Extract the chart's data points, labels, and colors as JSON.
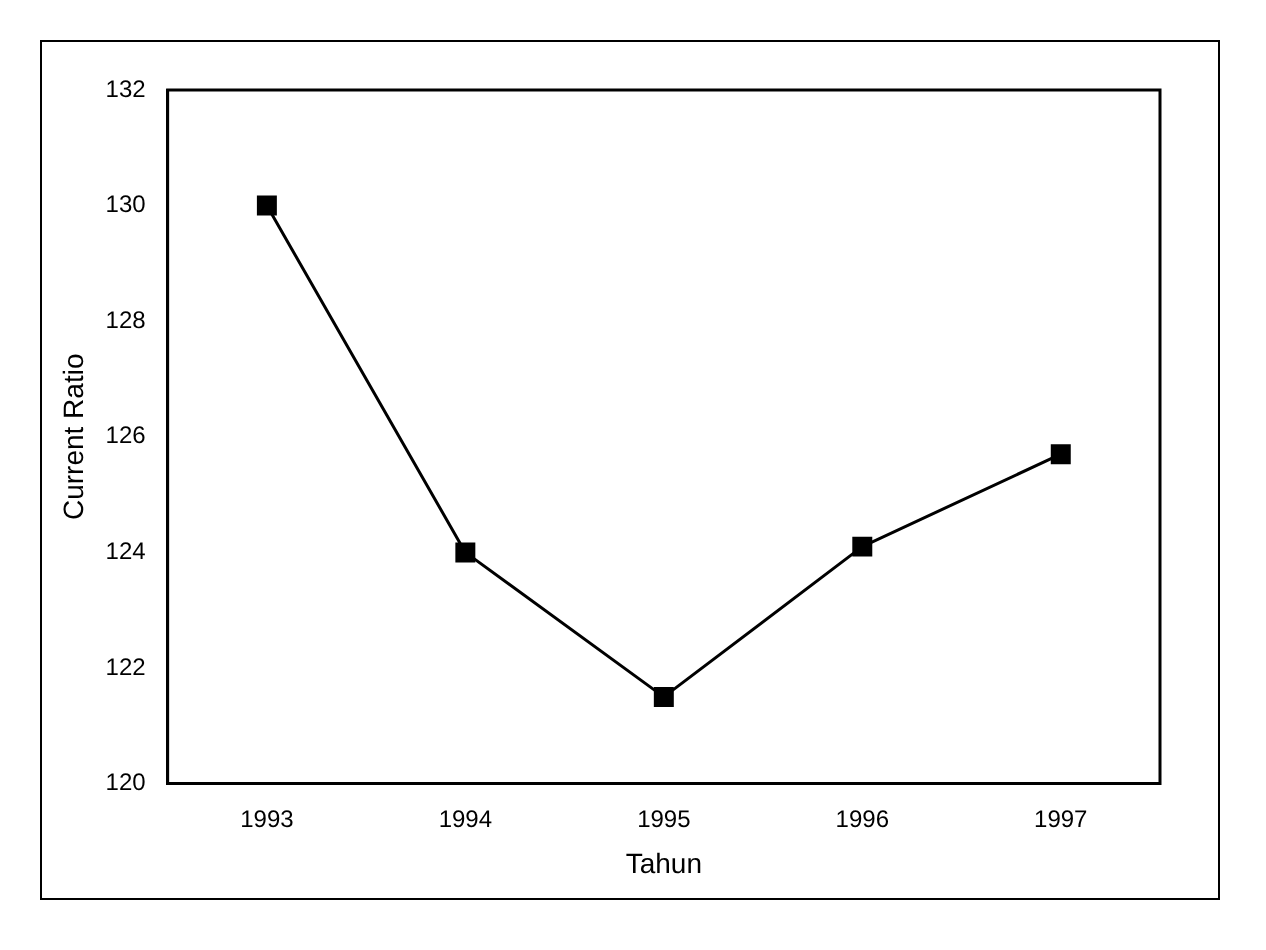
{
  "chart_data": {
    "type": "line",
    "xlabel": "Tahun",
    "ylabel": "Current Ratio",
    "categories": [
      "1993",
      "1994",
      "1995",
      "1996",
      "1997"
    ],
    "series": [
      {
        "color": "#000000",
        "values": [
          130.0,
          124.0,
          121.5,
          124.1,
          125.7
        ]
      }
    ],
    "ylim": [
      120,
      132
    ],
    "yticks": [
      120,
      122,
      124,
      126,
      128,
      130,
      132
    ],
    "grid": false,
    "legend": false,
    "marker": "square",
    "line_style": "solid"
  }
}
